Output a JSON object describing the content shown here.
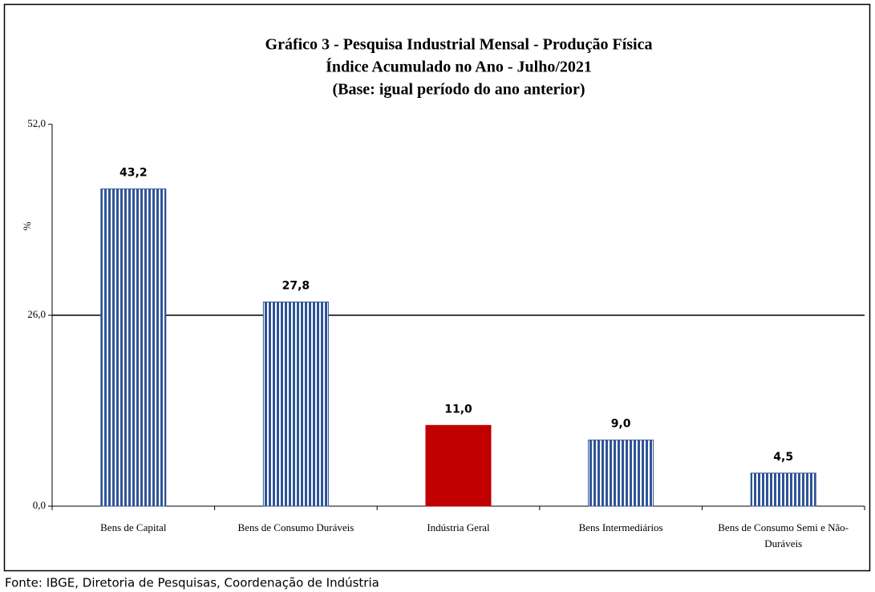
{
  "chart_data": {
    "type": "bar",
    "title": [
      "Gráfico 3 - Pesquisa Industrial Mensal - Produção Física",
      "Índice Acumulado no Ano - Julho/2021",
      "(Base: igual período do ano anterior)"
    ],
    "y_label": "%",
    "categories": [
      "Bens de Capital",
      "Bens de Consumo Duráveis",
      "Indústria Geral",
      "Bens Intermediários",
      "Bens de Consumo Semi e Não-Duráveis"
    ],
    "values": [
      43.2,
      27.8,
      11.0,
      9.0,
      4.5
    ],
    "value_labels": [
      "43,2",
      "27,8",
      "11,0",
      "9,0",
      "4,5"
    ],
    "bar_styles": [
      {
        "color": "#2f5597",
        "pattern": "stripes"
      },
      {
        "color": "#2f5597",
        "pattern": "stripes"
      },
      {
        "color": "#c00000",
        "pattern": "solid"
      },
      {
        "color": "#2f5597",
        "pattern": "stripes"
      },
      {
        "color": "#2f5597",
        "pattern": "stripes"
      }
    ],
    "ylim": [
      0,
      52
    ],
    "yticks": [
      {
        "value": 0,
        "label": "0,0"
      },
      {
        "value": 26,
        "label": "26,0"
      },
      {
        "value": 52,
        "label": "52,0"
      }
    ],
    "grid": true,
    "source": "Fonte: IBGE, Diretoria de Pesquisas, Coordenação de Indústria"
  }
}
